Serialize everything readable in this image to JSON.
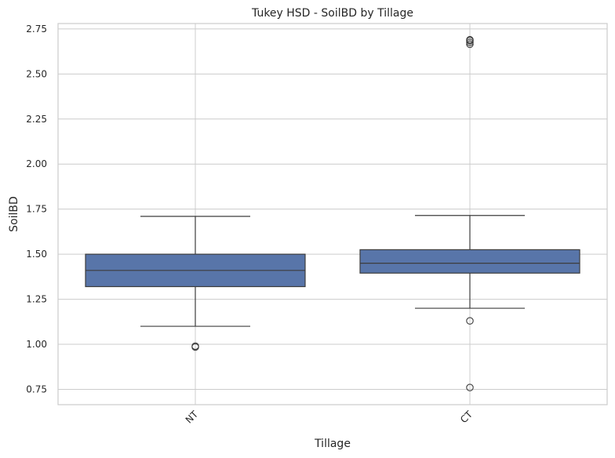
{
  "chart_data": {
    "type": "box",
    "title": "Tukey HSD - SoilBD by Tillage",
    "xlabel": "Tillage",
    "ylabel": "SoilBD",
    "ylim": [
      0.665,
      2.78
    ],
    "yticks": [
      0.75,
      1.0,
      1.25,
      1.5,
      1.75,
      2.0,
      2.25,
      2.5,
      2.75
    ],
    "ytick_labels": [
      "0.75",
      "1.00",
      "1.25",
      "1.50",
      "1.75",
      "2.00",
      "2.25",
      "2.50",
      "2.75"
    ],
    "grid": true,
    "box_color": "#5875a9",
    "categories": [
      "NT",
      "CT"
    ],
    "boxes": [
      {
        "category": "NT",
        "whisker_low": 1.1,
        "q1": 1.32,
        "median": 1.41,
        "q3": 1.5,
        "whisker_high": 1.71,
        "outliers": [
          0.985,
          0.99
        ]
      },
      {
        "category": "CT",
        "whisker_low": 1.2,
        "q1": 1.395,
        "median": 1.45,
        "q3": 1.525,
        "whisker_high": 1.715,
        "outliers": [
          0.76,
          1.13,
          2.665,
          2.675,
          2.685,
          2.69
        ]
      }
    ]
  }
}
